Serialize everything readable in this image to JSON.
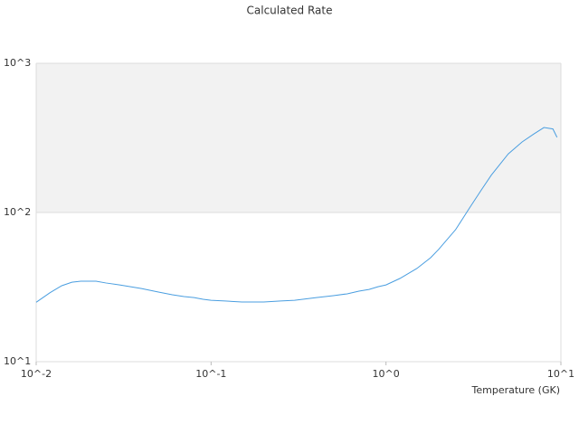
{
  "chart_data": {
    "type": "line",
    "title": "Calculated Rate",
    "x_label": "Temperature (GK)",
    "x": [
      0.01,
      0.012,
      0.014,
      0.016,
      0.018,
      0.02,
      0.022,
      0.025,
      0.03,
      0.04,
      0.05,
      0.06,
      0.07,
      0.08,
      0.09,
      0.1,
      0.12,
      0.15,
      0.2,
      0.25,
      0.3,
      0.4,
      0.5,
      0.6,
      0.7,
      0.8,
      0.9,
      1,
      1.2,
      1.5,
      1.8,
      2,
      2.5,
      3,
      3.5,
      4,
      5,
      6,
      7,
      8,
      9,
      9.5
    ],
    "series": [
      {
        "color": "#4a9ee0",
        "values": [
          25,
          29,
          32.3,
          34.1,
          34.6,
          34.6,
          34.6,
          33.7,
          32.7,
          30.9,
          29.3,
          28.1,
          27.3,
          26.9,
          26.2,
          25.8,
          25.5,
          25.1,
          25.1,
          25.5,
          25.8,
          26.9,
          27.7,
          28.5,
          29.7,
          30.5,
          31.8,
          32.7,
          36.1,
          42.1,
          49.8,
          56.6,
          76.7,
          107,
          141,
          178,
          247,
          297,
          336,
          371,
          363,
          319
        ]
      }
    ],
    "x_log": true,
    "y_log": true,
    "xlim": [
      0.01,
      10
    ],
    "ylim": [
      10,
      1000
    ],
    "xticks": [
      {
        "value": 0.01,
        "label": "10^-2"
      },
      {
        "value": 0.1,
        "label": "10^-1"
      },
      {
        "value": 1,
        "label": "10^0"
      },
      {
        "value": 10,
        "label": "10^1"
      }
    ],
    "yticks": [
      {
        "value": 10,
        "label": "10^1"
      },
      {
        "value": 100,
        "label": "10^2"
      },
      {
        "value": 1000,
        "label": "10^3"
      }
    ],
    "plot_bands": [
      {
        "from": 100,
        "to": 1000,
        "color": "#f2f2f2"
      }
    ],
    "grid": true
  }
}
